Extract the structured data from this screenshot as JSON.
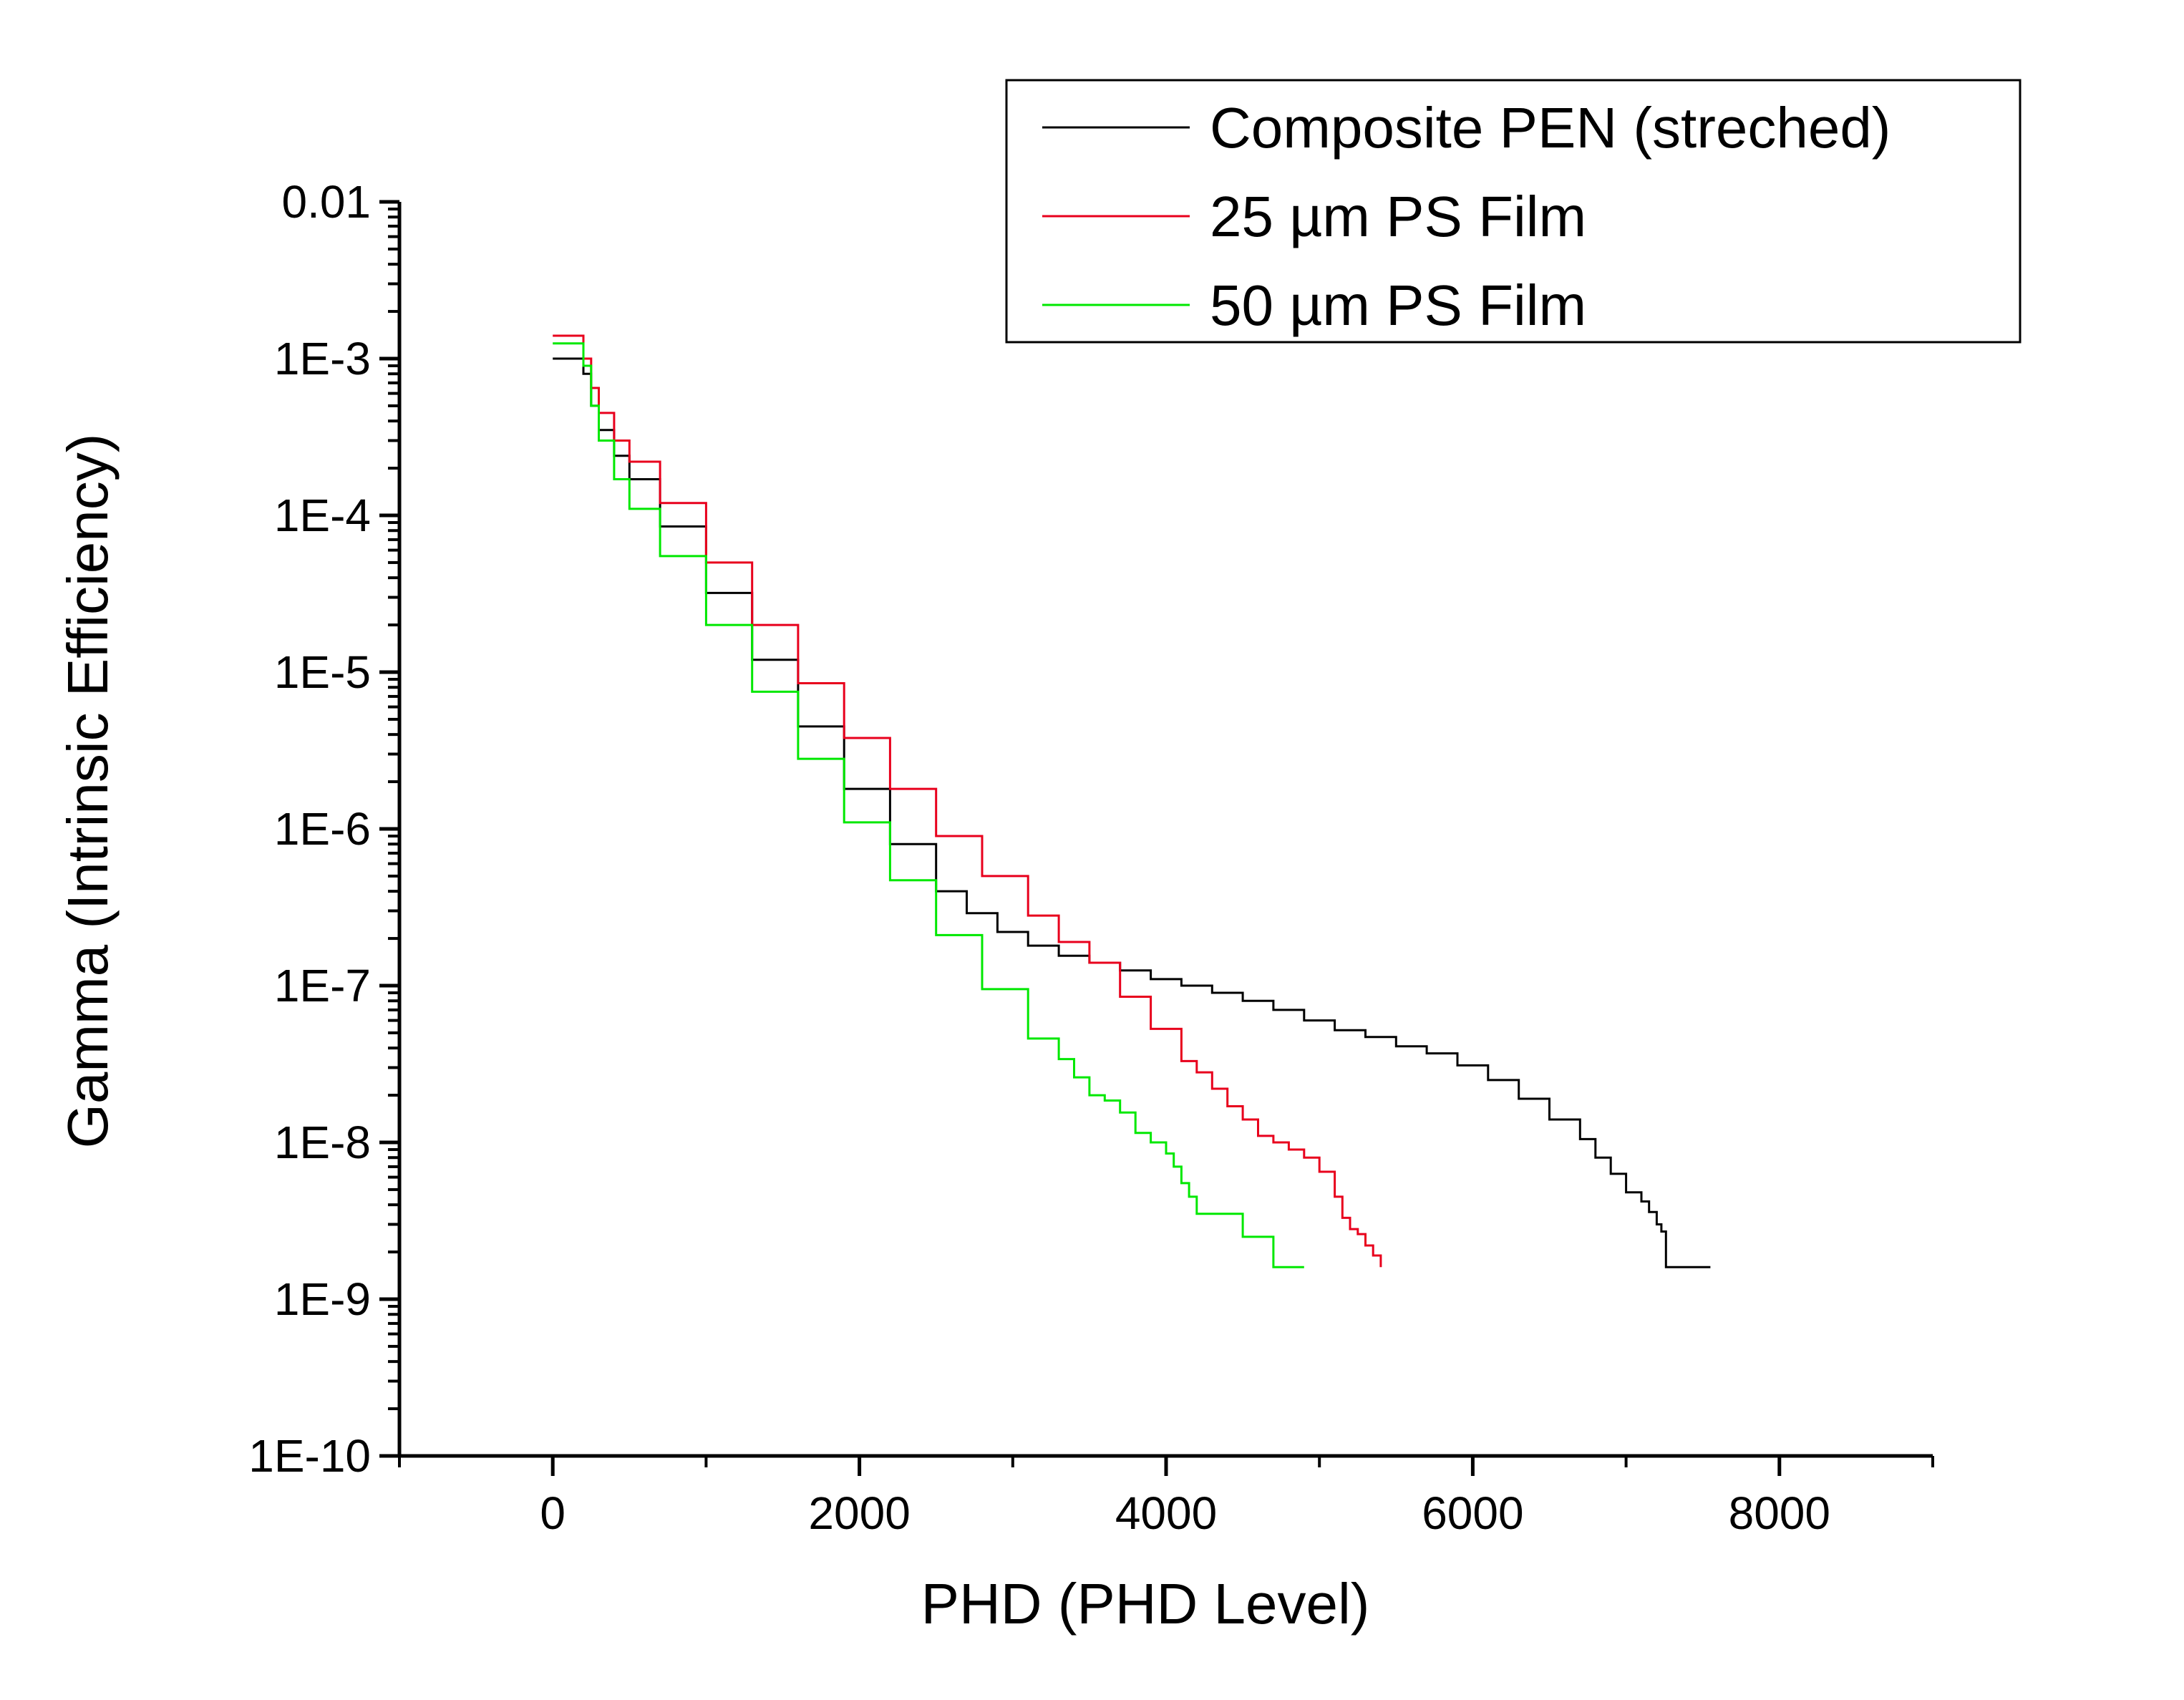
{
  "chart_data": {
    "type": "line",
    "title": "",
    "xlabel": "PHD (PHD Level)",
    "ylabel": "Gamma (Intrinsic Efficiency)",
    "xlim": [
      -1000,
      9000
    ],
    "ylim": [
      1e-10,
      0.01
    ],
    "yscale": "log",
    "x_ticks": [
      0,
      2000,
      4000,
      6000,
      8000
    ],
    "x_tick_labels": [
      "0",
      "2000",
      "4000",
      "6000",
      "8000"
    ],
    "y_ticks": [
      1e-10,
      1e-09,
      1e-08,
      1e-07,
      1e-06,
      1e-05,
      0.0001,
      0.001,
      0.01
    ],
    "y_tick_labels": [
      "1E-10",
      "1E-9",
      "1E-8",
      "1E-7",
      "1E-6",
      "1E-5",
      "1E-4",
      "1E-3",
      "0.01"
    ],
    "grid": false,
    "legend_position": "top-right",
    "series": [
      {
        "name": "Composite PEN (streched)",
        "color": "#000000",
        "x": [
          0,
          170,
          200,
          250,
          300,
          400,
          500,
          700,
          1000,
          1300,
          1600,
          1900,
          2200,
          2500,
          2700,
          2900,
          3100,
          3300,
          3500,
          3700,
          3900,
          4100,
          4300,
          4500,
          4700,
          4900,
          5100,
          5300,
          5500,
          5700,
          5900,
          6100,
          6300,
          6500,
          6700,
          6800,
          6900,
          7000,
          7100,
          7150,
          7200,
          7230,
          7260,
          7550
        ],
        "y": [
          0.001,
          0.001,
          0.0008,
          0.0005,
          0.00035,
          0.00024,
          0.00017,
          8.5e-05,
          3.2e-05,
          1.2e-05,
          4.5e-06,
          1.8e-06,
          8e-07,
          4e-07,
          2.9e-07,
          2.2e-07,
          1.8e-07,
          1.55e-07,
          1.4e-07,
          1.25e-07,
          1.1e-07,
          1e-07,
          9e-08,
          8e-08,
          7e-08,
          6e-08,
          5.2e-08,
          4.7e-08,
          4.1e-08,
          3.7e-08,
          3.1e-08,
          2.5e-08,
          1.9e-08,
          1.4e-08,
          1.05e-08,
          8e-09,
          6.3e-09,
          4.8e-09,
          4.2e-09,
          3.6e-09,
          3e-09,
          2.7e-09,
          1.6e-09,
          1.6e-09
        ]
      },
      {
        "name": "25 µm PS Film",
        "color": "#e8001c",
        "x": [
          0,
          170,
          200,
          250,
          300,
          400,
          500,
          700,
          1000,
          1300,
          1600,
          1900,
          2200,
          2500,
          2800,
          3100,
          3300,
          3500,
          3700,
          3900,
          4100,
          4200,
          4300,
          4400,
          4500,
          4600,
          4700,
          4800,
          4900,
          5000,
          5100,
          5150,
          5200,
          5250,
          5300,
          5350,
          5400
        ],
        "y": [
          0.0014,
          0.0014,
          0.001,
          0.00065,
          0.00045,
          0.0003,
          0.00022,
          0.00012,
          5e-05,
          2e-05,
          8.5e-06,
          3.8e-06,
          1.8e-06,
          9e-07,
          5e-07,
          2.8e-07,
          1.9e-07,
          1.4e-07,
          8.5e-08,
          5.3e-08,
          3.3e-08,
          2.8e-08,
          2.2e-08,
          1.7e-08,
          1.4e-08,
          1.1e-08,
          1e-08,
          9e-09,
          8e-09,
          6.5e-09,
          4.5e-09,
          3.3e-09,
          2.8e-09,
          2.6e-09,
          2.2e-09,
          1.9e-09,
          1.6e-09
        ]
      },
      {
        "name": "50 µm PS Film",
        "color": "#00e800",
        "x": [
          0,
          170,
          200,
          250,
          300,
          400,
          500,
          700,
          1000,
          1300,
          1600,
          1900,
          2200,
          2500,
          2800,
          3100,
          3300,
          3400,
          3500,
          3600,
          3700,
          3800,
          3900,
          4000,
          4050,
          4100,
          4150,
          4200,
          4300,
          4500,
          4550,
          4600,
          4700,
          4750,
          4900
        ],
        "y": [
          0.00125,
          0.00125,
          0.0009,
          0.0005,
          0.0003,
          0.00017,
          0.00011,
          5.5e-05,
          2e-05,
          7.5e-06,
          2.8e-06,
          1.1e-06,
          4.7e-07,
          2.1e-07,
          9.5e-08,
          4.6e-08,
          3.4e-08,
          2.6e-08,
          2e-08,
          1.85e-08,
          1.55e-08,
          1.15e-08,
          1e-08,
          8.5e-09,
          7e-09,
          5.5e-09,
          4.5e-09,
          3.5e-09,
          3.5e-09,
          2.5e-09,
          2.5e-09,
          2.5e-09,
          1.6e-09,
          1.6e-09,
          1.6e-09
        ]
      }
    ]
  }
}
